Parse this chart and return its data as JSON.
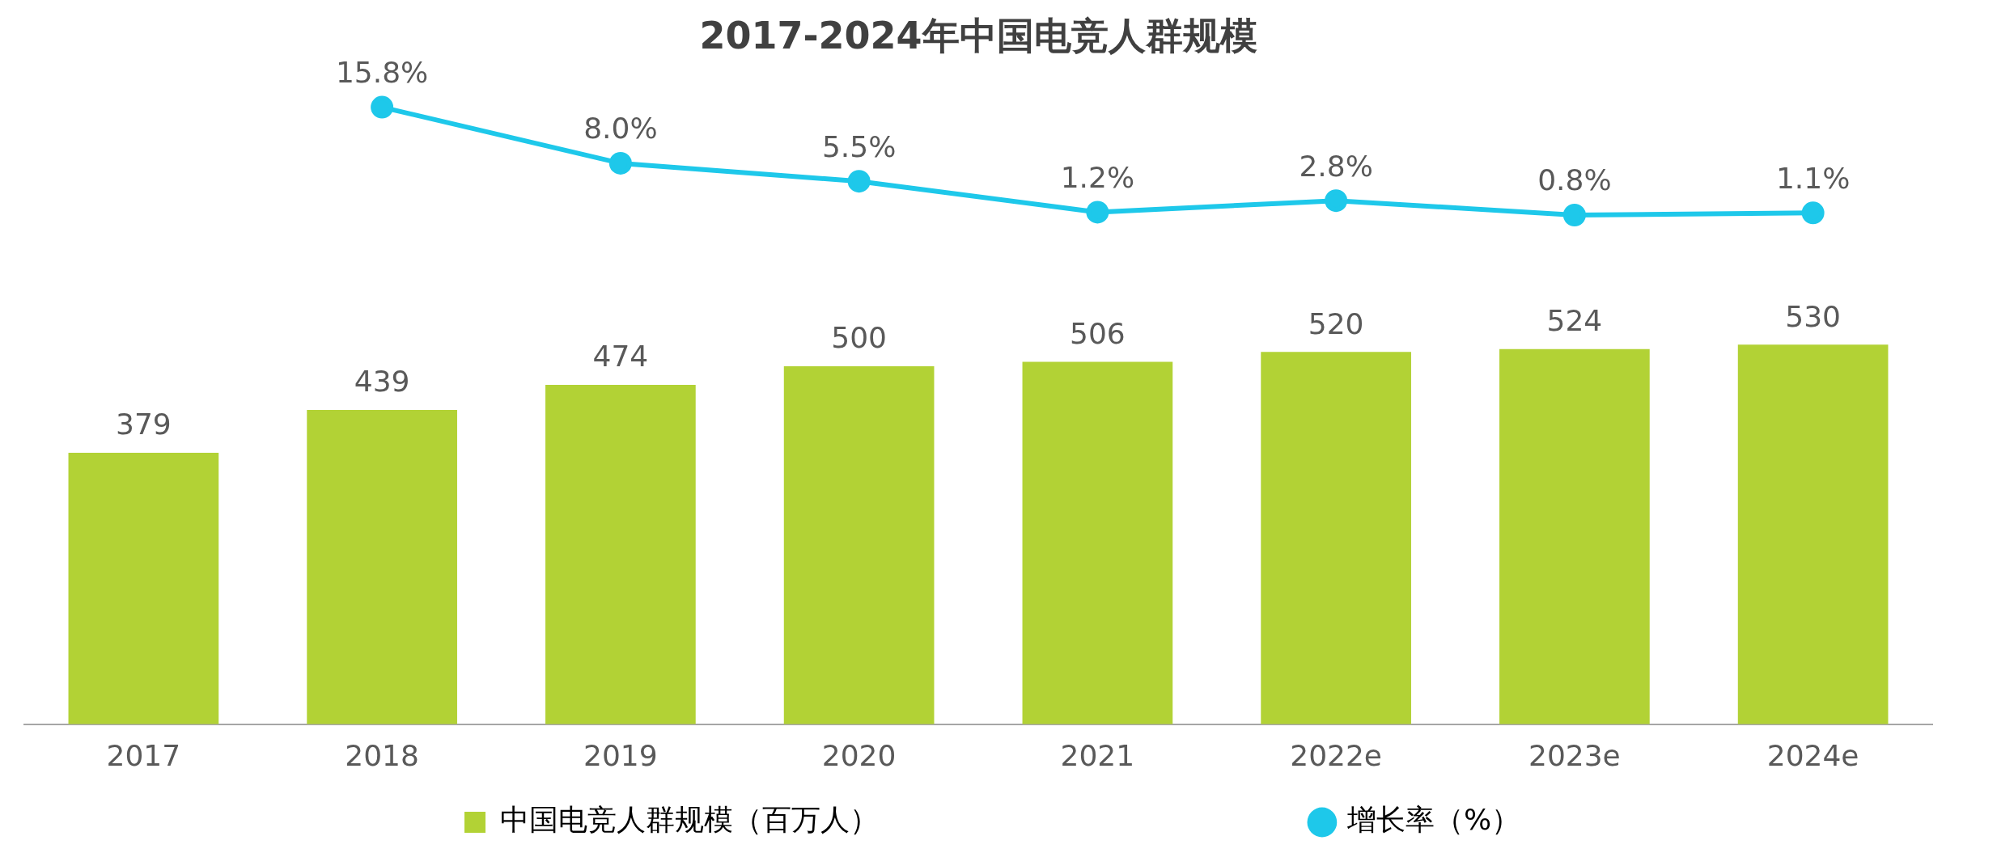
{
  "chart_data": [
    {
      "type": "line",
      "title": "2017-2024年中国电竞人群规模",
      "categories": [
        null,
        null,
        null,
        null,
        null,
        null,
        null,
        null
      ],
      "series": [
        {
          "name": "增长率（%）",
          "color": "#1ec8ea",
          "marker": "circle",
          "values": [
            null,
            15.8,
            8.0,
            5.5,
            1.2,
            2.8,
            0.8,
            1.1
          ],
          "value_labels": [
            null,
            "15.8%",
            "8.0%",
            "5.5%",
            "1.2%",
            "2.8%",
            "0.8%",
            "1.1%"
          ]
        }
      ],
      "legend": "bottom",
      "grid": false
    },
    {
      "type": "bar",
      "categories": [
        "2017",
        "2018",
        "2019",
        "2020",
        "2021",
        "2022e",
        "2023e",
        "2024e"
      ],
      "series": [
        {
          "name": "中国电竞人群规模（百万人）",
          "color": "#b2d235",
          "values": [
            379,
            439,
            474,
            500,
            506,
            520,
            524,
            530
          ],
          "value_labels": [
            "379",
            "439",
            "474",
            "500",
            "506",
            "520",
            "524",
            "530"
          ]
        }
      ],
      "legend": "bottom",
      "grid": false
    }
  ]
}
